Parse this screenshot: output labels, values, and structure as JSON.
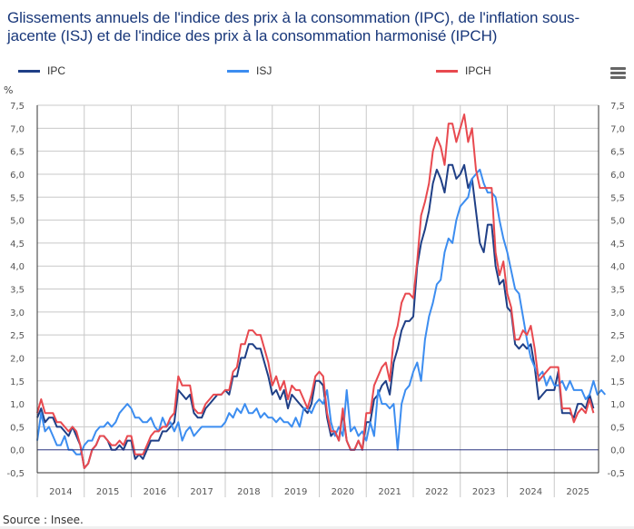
{
  "chart_data": {
    "type": "line",
    "title": "Glissements annuels de l'indice des prix à la consommation (IPC), de l'inflation sous-jacente (ISJ) et de l'indice des prix à la consommation harmonisé (IPCH)",
    "ylabel": "%",
    "xlabel": "",
    "ylim": [
      -0.5,
      7.5
    ],
    "yticks": [
      "7,5",
      "7,0",
      "6,5",
      "6,0",
      "5,5",
      "5,0",
      "4,5",
      "4,0",
      "3,5",
      "3,0",
      "2,5",
      "2,0",
      "1,5",
      "1,0",
      "0,5",
      "0,0",
      "-0,5"
    ],
    "ytick_values": [
      7.5,
      7.0,
      6.5,
      6.0,
      5.5,
      5.0,
      4.5,
      4.0,
      3.5,
      3.0,
      2.5,
      2.0,
      1.5,
      1.0,
      0.5,
      0.0,
      -0.5
    ],
    "x_start": "2014-01",
    "x_frequency": "monthly",
    "xticks": [
      "2014",
      "2015",
      "2016",
      "2017",
      "2018",
      "2019",
      "2020",
      "2021",
      "2022",
      "2023",
      "2024",
      "2025"
    ],
    "grid": true,
    "legend": "top",
    "series": [
      {
        "name": "IPC",
        "color": "#1f3f86",
        "values": [
          0.7,
          0.9,
          0.6,
          0.7,
          0.7,
          0.5,
          0.5,
          0.4,
          0.3,
          0.5,
          0.3,
          0.1,
          -0.4,
          -0.3,
          0.0,
          0.1,
          0.3,
          0.3,
          0.2,
          0.0,
          0.0,
          0.1,
          0.0,
          0.2,
          0.2,
          -0.2,
          -0.1,
          -0.2,
          0.0,
          0.2,
          0.2,
          0.2,
          0.4,
          0.4,
          0.5,
          0.6,
          1.3,
          1.2,
          1.1,
          1.2,
          0.8,
          0.7,
          0.7,
          0.9,
          1.0,
          1.1,
          1.2,
          1.2,
          1.3,
          1.2,
          1.6,
          1.6,
          2.0,
          2.0,
          2.3,
          2.3,
          2.2,
          2.2,
          1.9,
          1.6,
          1.2,
          1.3,
          1.1,
          1.3,
          0.9,
          1.2,
          1.1,
          1.0,
          0.9,
          0.8,
          1.0,
          1.5,
          1.5,
          1.4,
          0.7,
          0.3,
          0.4,
          0.2,
          0.8,
          0.2,
          0.0,
          0.0,
          0.2,
          0.0,
          0.6,
          0.6,
          1.1,
          1.2,
          1.4,
          1.5,
          1.2,
          1.9,
          2.2,
          2.6,
          2.8,
          2.8,
          2.9,
          4.0,
          4.5,
          4.8,
          5.2,
          5.8,
          6.1,
          5.9,
          5.6,
          6.2,
          6.2,
          5.9,
          6.0,
          6.2,
          5.7,
          5.9,
          5.2,
          4.5,
          4.3,
          4.9,
          4.9,
          4.0,
          3.6,
          3.7,
          3.1,
          3.0,
          2.3,
          2.2,
          2.3,
          2.2,
          2.3,
          1.8,
          1.1,
          1.2,
          1.3,
          1.3,
          1.3,
          1.7,
          0.8,
          0.8,
          0.8,
          0.7,
          1.0,
          1.0,
          0.9,
          1.2,
          0.9
        ]
      },
      {
        "name": "ISJ",
        "color": "#3c8df0",
        "values": [
          0.2,
          0.8,
          0.4,
          0.5,
          0.3,
          0.1,
          0.1,
          0.3,
          0.0,
          0.0,
          -0.1,
          -0.1,
          0.1,
          0.2,
          0.2,
          0.4,
          0.5,
          0.5,
          0.6,
          0.5,
          0.6,
          0.8,
          0.9,
          1.0,
          0.9,
          0.7,
          0.7,
          0.6,
          0.6,
          0.7,
          0.5,
          0.4,
          0.7,
          0.5,
          0.6,
          0.4,
          0.6,
          0.2,
          0.4,
          0.5,
          0.3,
          0.4,
          0.5,
          0.5,
          0.5,
          0.5,
          0.5,
          0.5,
          0.6,
          0.8,
          0.7,
          0.9,
          0.8,
          1.0,
          0.8,
          0.8,
          0.9,
          0.7,
          0.8,
          0.7,
          0.7,
          0.6,
          0.7,
          0.6,
          0.6,
          0.5,
          0.7,
          0.5,
          0.9,
          0.9,
          0.8,
          1.0,
          1.1,
          1.0,
          1.3,
          0.6,
          0.3,
          0.5,
          0.3,
          1.3,
          0.4,
          0.5,
          0.3,
          0.4,
          0.2,
          0.6,
          0.3,
          1.3,
          1.0,
          1.0,
          0.9,
          1.0,
          0.0,
          1.0,
          1.3,
          1.4,
          1.7,
          1.9,
          1.5,
          2.4,
          2.9,
          3.2,
          3.6,
          3.7,
          4.3,
          4.6,
          4.5,
          5.0,
          5.3,
          5.4,
          5.5,
          5.9,
          6.0,
          6.1,
          5.8,
          5.6,
          5.6,
          5.5,
          5.0,
          4.6,
          4.3,
          3.9,
          3.5,
          3.4,
          2.9,
          2.4,
          2.0,
          1.8,
          1.6,
          1.7,
          1.4,
          1.6,
          1.4,
          1.4,
          1.5,
          1.3,
          1.5,
          1.3,
          1.3,
          1.3,
          1.1,
          1.2,
          1.5,
          1.2,
          1.3,
          1.2
        ]
      },
      {
        "name": "IPCH",
        "color": "#e8494f",
        "values": [
          0.8,
          1.1,
          0.8,
          0.8,
          0.8,
          0.6,
          0.6,
          0.5,
          0.4,
          0.5,
          0.4,
          0.1,
          -0.4,
          -0.3,
          0.0,
          0.1,
          0.3,
          0.3,
          0.2,
          0.1,
          0.1,
          0.2,
          0.1,
          0.3,
          0.3,
          -0.1,
          -0.1,
          -0.1,
          0.1,
          0.3,
          0.4,
          0.4,
          0.5,
          0.5,
          0.7,
          0.8,
          1.6,
          1.4,
          1.4,
          1.4,
          0.9,
          0.8,
          0.8,
          1.0,
          1.1,
          1.2,
          1.2,
          1.2,
          1.3,
          1.3,
          1.7,
          1.8,
          2.3,
          2.3,
          2.6,
          2.6,
          2.5,
          2.5,
          2.2,
          1.9,
          1.4,
          1.6,
          1.3,
          1.5,
          1.1,
          1.4,
          1.3,
          1.3,
          1.1,
          0.9,
          1.2,
          1.6,
          1.7,
          1.6,
          0.8,
          0.4,
          0.4,
          0.2,
          0.9,
          0.2,
          0.0,
          0.0,
          0.2,
          0.0,
          0.8,
          0.8,
          1.4,
          1.6,
          1.8,
          1.9,
          1.5,
          2.4,
          2.7,
          3.2,
          3.4,
          3.4,
          3.3,
          4.1,
          5.1,
          5.4,
          5.8,
          6.5,
          6.8,
          6.6,
          6.2,
          7.1,
          7.1,
          6.7,
          7.0,
          7.3,
          6.7,
          7.0,
          6.1,
          5.7,
          5.7,
          5.7,
          5.7,
          4.3,
          3.8,
          4.1,
          3.4,
          3.1,
          2.4,
          2.4,
          2.6,
          2.5,
          2.7,
          2.2,
          1.5,
          1.6,
          1.7,
          1.8,
          1.8,
          1.8,
          0.9,
          0.9,
          0.9,
          0.6,
          0.8,
          0.9,
          0.8,
          1.1,
          0.8
        ]
      }
    ]
  },
  "legend": {
    "items": [
      {
        "label": "IPC",
        "color": "#1f3f86"
      },
      {
        "label": "ISJ",
        "color": "#3c8df0"
      },
      {
        "label": "IPCH",
        "color": "#e8494f"
      }
    ]
  },
  "menu_icon": "hamburger-menu-icon",
  "source": "Source : Insee."
}
